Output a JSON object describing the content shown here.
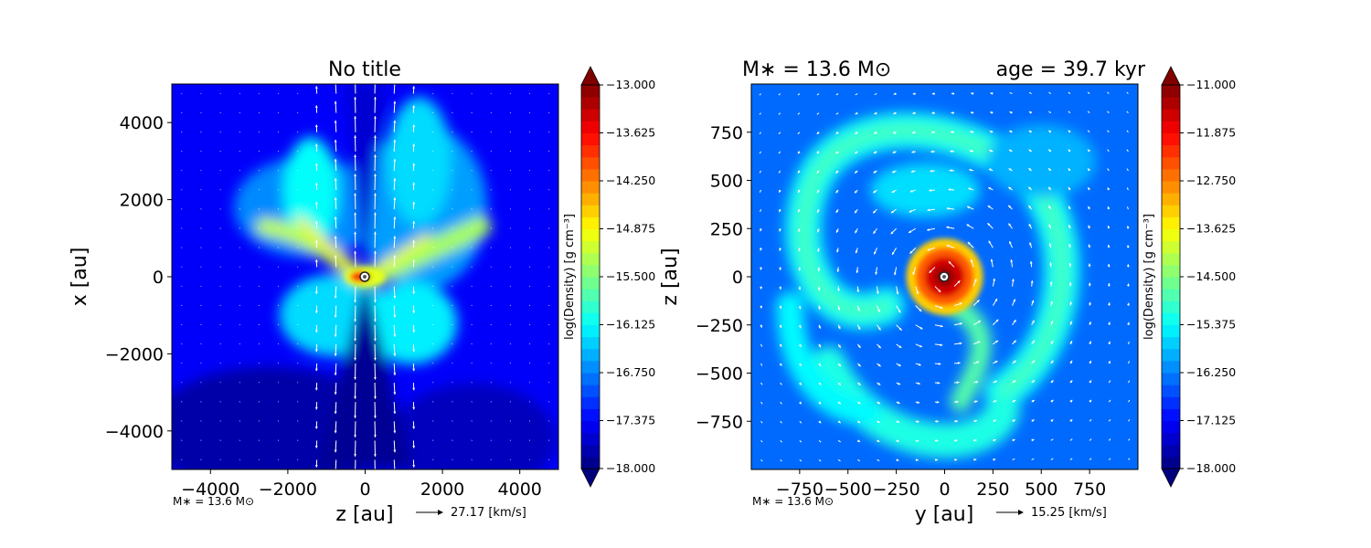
{
  "chart_data": [
    {
      "type": "heatmap",
      "title": "No title",
      "xlabel": "z [au]",
      "ylabel": "x [au]",
      "xlim": [
        -5000,
        5000
      ],
      "ylim": [
        -5000,
        5000
      ],
      "xticks": [
        -4000,
        -2000,
        0,
        2000,
        4000
      ],
      "yticks": [
        -4000,
        -2000,
        0,
        2000,
        4000
      ],
      "xtick_labels": [
        "−4000",
        "−2000",
        "0",
        "2000",
        "4000"
      ],
      "ytick_labels": [
        "−4000",
        "−2000",
        "0",
        "2000",
        "4000"
      ],
      "colorbar": {
        "label": "log(Density) [g cm⁻³]",
        "range": [
          -18.0,
          -13.0
        ],
        "ticks": [
          -13.0,
          -13.625,
          -14.25,
          -14.875,
          -15.5,
          -16.125,
          -16.75,
          -17.375,
          -18.0
        ],
        "tick_labels": [
          "−13.000",
          "−13.625",
          "−14.250",
          "−14.875",
          "−15.500",
          "−16.125",
          "−16.750",
          "−17.375",
          "−18.000"
        ],
        "extend": "both",
        "colormap": "jet"
      },
      "background_value": -17.4,
      "features": [
        {
          "kind": "sink",
          "x": 0,
          "y": 0,
          "peak": -13.2
        },
        {
          "kind": "outflow_cavity",
          "description": "low-density bipolar cone along x"
        },
        {
          "kind": "filament",
          "from": [
            -2500,
            1300
          ],
          "to": [
            -200,
            0
          ],
          "peak": -15.2
        },
        {
          "kind": "filament",
          "from": [
            200,
            0
          ],
          "to": [
            3000,
            1300
          ],
          "peak": -15.3
        },
        {
          "kind": "dense_core",
          "x": -200,
          "y": 0,
          "peak": -13.8
        }
      ],
      "annotation_left": "M∗ = 13.6 M⊙",
      "quiver_key": {
        "value": 27.17,
        "label": "27.17 [km/s]"
      }
    },
    {
      "type": "heatmap",
      "title_left": "M∗ = 13.6 M⊙",
      "title_right": "age = 39.7 kyr",
      "xlabel": "y [au]",
      "ylabel": "z [au]",
      "xlim": [
        -1000,
        1000
      ],
      "ylim": [
        -1000,
        1000
      ],
      "xticks": [
        -750,
        -500,
        -250,
        0,
        250,
        500,
        750
      ],
      "yticks": [
        -750,
        -500,
        -250,
        0,
        250,
        500,
        750
      ],
      "xtick_labels": [
        "−750",
        "−500",
        "−250",
        "0",
        "250",
        "500",
        "750"
      ],
      "ytick_labels": [
        "−750",
        "−500",
        "−250",
        "0",
        "250",
        "500",
        "750"
      ],
      "colorbar": {
        "label": "log(Density) [g cm⁻³]",
        "range": [
          -18.0,
          -11.0
        ],
        "ticks": [
          -11.0,
          -11.875,
          -12.75,
          -13.625,
          -14.5,
          -15.375,
          -16.25,
          -17.125,
          -18.0
        ],
        "tick_labels": [
          "−11.000",
          "−11.875",
          "−12.750",
          "−13.625",
          "−14.500",
          "−15.375",
          "−16.250",
          "−17.125",
          "−18.000"
        ],
        "extend": "both",
        "colormap": "jet"
      },
      "background_value": -16.4,
      "features": [
        {
          "kind": "disk_core",
          "x": 0,
          "y": 0,
          "radius": 100,
          "peak": -11.3
        },
        {
          "kind": "spiral_arm",
          "description": "ring-like arm from upper-left around to lower-right",
          "peak": -15.0
        }
      ],
      "annotation_left": "M∗ = 13.6 M⊙",
      "quiver_key": {
        "value": 15.25,
        "label": "15.25 [km/s]"
      }
    }
  ]
}
